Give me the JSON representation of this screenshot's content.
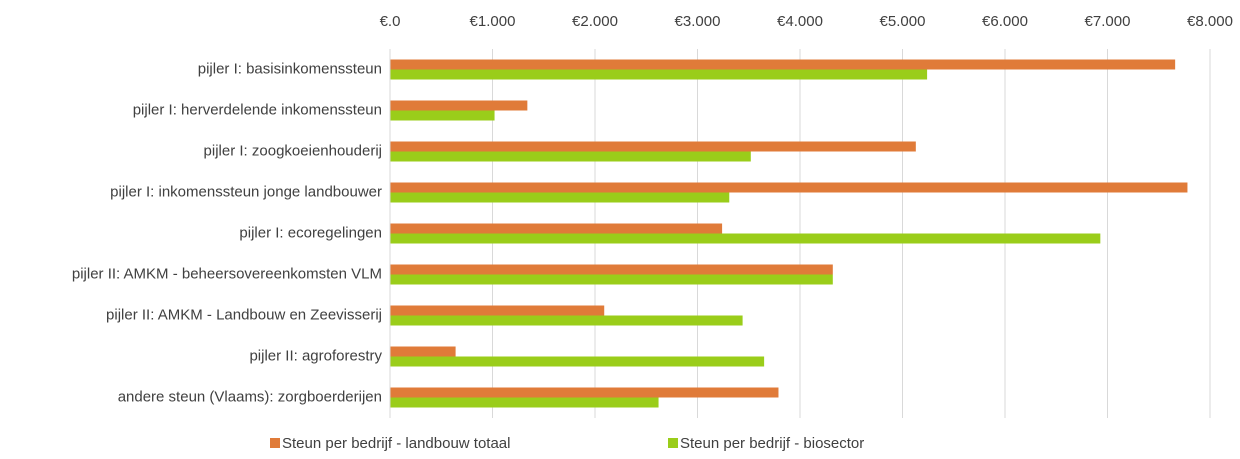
{
  "chart_data": {
    "type": "hbar",
    "categories": [
      "pijler I: basisinkomenssteun",
      "pijler I: herverdelende inkomenssteun",
      "pijler I: zoogkoeienhouderij",
      "pijler I: inkomenssteun jonge landbouwer",
      "pijler I: ecoregelingen",
      "pijler II: AMKM - beheersovereenkomsten VLM",
      "pijler II: AMKM - Landbouw en Zeevisserij",
      "pijler II: agroforestry",
      "andere steun (Vlaams): zorgboerderijen"
    ],
    "series": [
      {
        "name": "Steun per bedrijf - landbouw totaal",
        "color": "#e07b39",
        "values": [
          7660,
          1340,
          5130,
          7780,
          3240,
          4320,
          2090,
          640,
          3790
        ]
      },
      {
        "name": "Steun per bedrijf - biosector",
        "color": "#9acd1a",
        "values": [
          5240,
          1020,
          3520,
          3310,
          6930,
          4320,
          3440,
          3650,
          2620
        ]
      }
    ],
    "xlim": [
      0,
      8000
    ],
    "xticks": [
      {
        "value": 0,
        "label": "€.0"
      },
      {
        "value": 1000,
        "label": "€1.000"
      },
      {
        "value": 2000,
        "label": "€2.000"
      },
      {
        "value": 3000,
        "label": "€3.000"
      },
      {
        "value": 4000,
        "label": "€4.000"
      },
      {
        "value": 5000,
        "label": "€5.000"
      },
      {
        "value": 6000,
        "label": "€6.000"
      },
      {
        "value": 7000,
        "label": "€7.000"
      },
      {
        "value": 8000,
        "label": "€8.000"
      }
    ],
    "grid": true,
    "legend": "bottom"
  }
}
